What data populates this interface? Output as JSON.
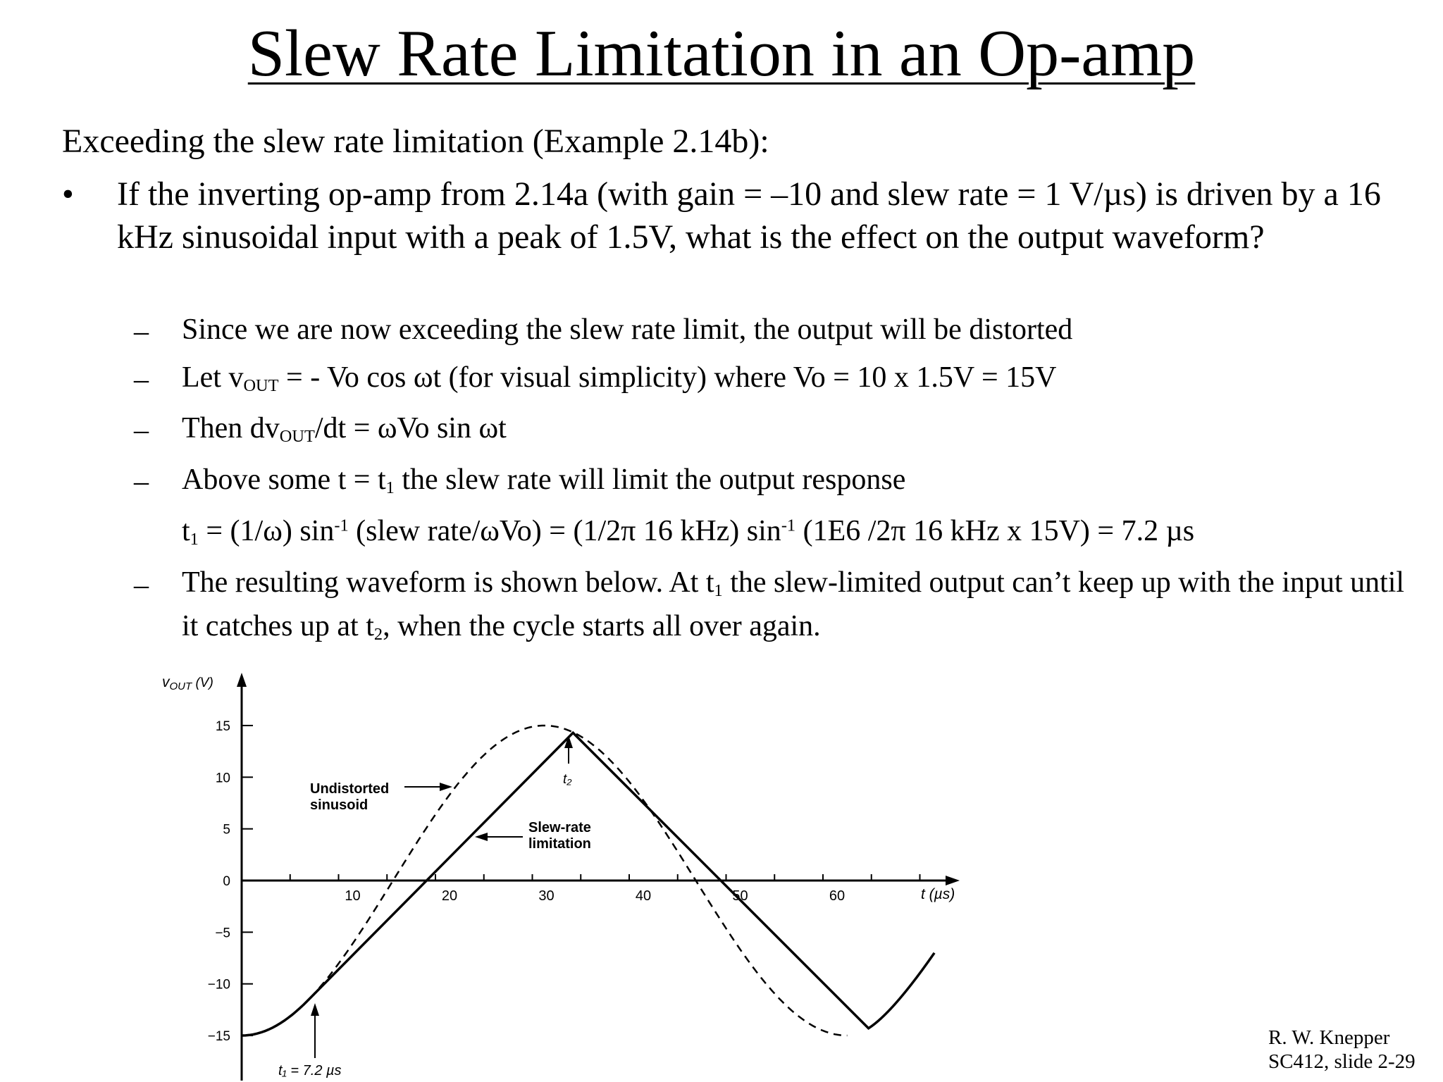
{
  "title": "Slew Rate Limitation in an Op-amp",
  "intro": "Exceeding the slew rate limitation (Example 2.14b):",
  "bullet": {
    "marker": "•",
    "text": "If the inverting op-amp from 2.14a (with gain = –10 and slew rate = 1 V/µs) is driven by a 16 kHz sinusoidal input with a peak of 1.5V, what is the effect on the output waveform?"
  },
  "subpoints": {
    "dash": "–",
    "item1": "Since we are now exceeding the slew rate limit, the output will be distorted",
    "item2": {
      "a": "Let v",
      "sub": "OUT",
      "b": " = - Vo cos ωt (for visual simplicity) where Vo = 10 x 1.5V = 15V"
    },
    "item3": {
      "a": "Then dv",
      "sub": "OUT",
      "b": "/dt = ωVo sin ωt"
    },
    "item4": {
      "a": "Above some t = t",
      "sub": "1",
      "b": " the slew rate will limit the output response"
    },
    "formula": {
      "a": "t",
      "sub1": "1",
      "b": " = (1/ω) sin",
      "sup1": "-1",
      "c": " (slew rate/ωVo) = (1/2π 16 kHz) sin",
      "sup2": "-1",
      "d": " (1E6 /2π 16 kHz x 15V) = 7.2 µs"
    },
    "item5": {
      "a": "The resulting waveform is shown below.  At t",
      "sub1": "1",
      "b": " the slew-limited output can’t keep up with the input until it catches up at t",
      "sub2": "2",
      "c": ", when the cycle starts all over again."
    }
  },
  "chart_data": {
    "type": "line",
    "y_axis_label": "vOUT (V)",
    "y_axis_label_main": "v",
    "y_axis_label_sub": "OUT",
    "y_axis_label_unit": " (V)",
    "x_axis_label": "t (µs)",
    "x_ticks": [
      "10",
      "20",
      "30",
      "40",
      "50",
      "60"
    ],
    "y_ticks": [
      "15",
      "10",
      "5",
      "0",
      "−5",
      "−10",
      "−15"
    ],
    "xlim": [
      0,
      72.5
    ],
    "ylim": [
      -15,
      15
    ],
    "series": [
      {
        "name": "Undistorted sinusoid",
        "style": "dashed",
        "function": "-15 cos(2π·16kHz·t)"
      },
      {
        "name": "Slew-rate limitation",
        "style": "solid",
        "points": [
          [
            0,
            -15
          ],
          [
            7.2,
            -11.7
          ],
          [
            34.2,
            14.3
          ],
          [
            64.7,
            -14.3
          ],
          [
            71.5,
            -7
          ]
        ]
      }
    ],
    "annotations": {
      "undistorted": [
        "Undistorted",
        "sinusoid"
      ],
      "slew": [
        "Slew-rate",
        "limitation"
      ],
      "t1": "t₁ = 7.2 µs",
      "t2": "t₂"
    }
  },
  "credit": {
    "line1": "R. W. Knepper",
    "line2": "SC412, slide 2-29"
  }
}
